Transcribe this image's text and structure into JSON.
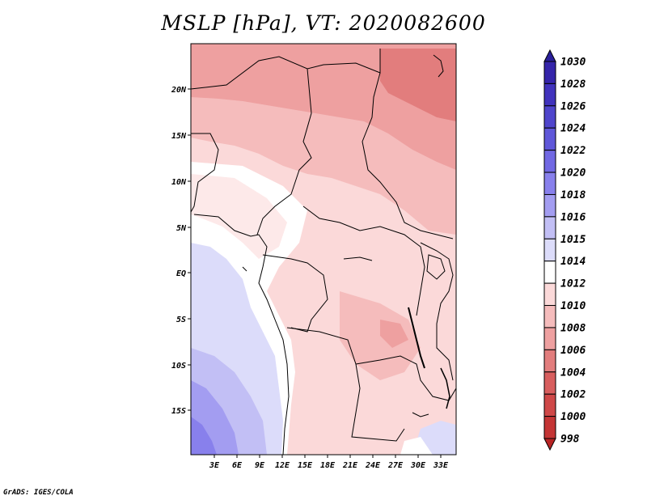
{
  "title": "MSLP [hPa], VT: 2020082600",
  "footer": "GrADS: IGES/COLA",
  "map": {
    "variable": "MSLP",
    "units": "hPa",
    "valid_time": "2020082600",
    "lat_labels": [
      "20N",
      "15N",
      "10N",
      "5N",
      "EQ",
      "5S",
      "10S",
      "15S"
    ],
    "lon_labels": [
      "3E",
      "6E",
      "9E",
      "12E",
      "15E",
      "18E",
      "21E",
      "24E",
      "27E",
      "30E",
      "33E"
    ]
  },
  "colorbar": {
    "labels": [
      "1030",
      "1028",
      "1026",
      "1024",
      "1022",
      "1020",
      "1018",
      "1016",
      "1015",
      "1014",
      "1012",
      "1010",
      "1008",
      "1006",
      "1004",
      "1002",
      "1000",
      "998"
    ],
    "colors": [
      "#2a1f9a",
      "#3525aa",
      "#4133bd",
      "#4f45cc",
      "#5f57d9",
      "#7168e3",
      "#8880ec",
      "#a39df1",
      "#c2bff5",
      "#dcdcfa",
      "#ffffff",
      "#fbd9d9",
      "#f5bcbc",
      "#eea0a0",
      "#e27d7d",
      "#d85e5e",
      "#cf4848",
      "#c43535",
      "#b82424"
    ]
  }
}
